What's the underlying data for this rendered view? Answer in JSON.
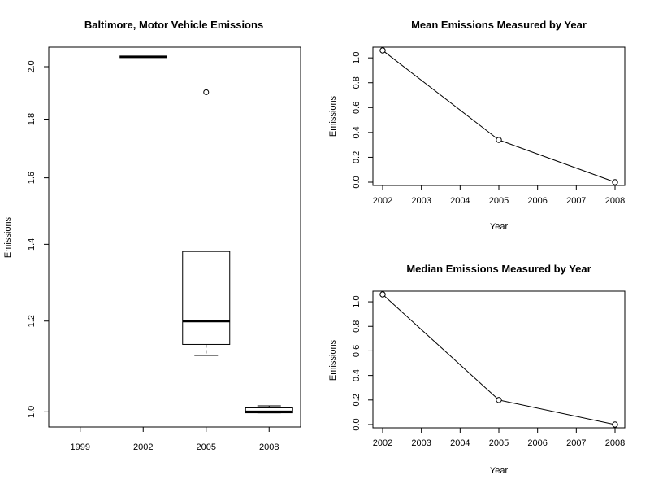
{
  "chart_data": [
    {
      "type": "boxplot",
      "title": "Baltimore, Motor Vehicle Emissions",
      "xlabel": "",
      "ylabel": "Emissions",
      "y_scale": "log",
      "ylim": [
        0.97,
        2.08
      ],
      "y_ticks": [
        1.0,
        1.2,
        1.4,
        1.6,
        1.8,
        2.0
      ],
      "y_tick_labels": [
        "1.0",
        "1.2",
        "1.4",
        "1.6",
        "1.8",
        "2.0"
      ],
      "categories": [
        "1999",
        "2002",
        "2005",
        "2008"
      ],
      "boxes": [
        null,
        {
          "min": 2.04,
          "q1": 2.04,
          "median": 2.04,
          "q3": 2.04,
          "max": 2.04,
          "outliers": []
        },
        {
          "min": 1.12,
          "q1": 1.145,
          "median": 1.2,
          "q3": 1.38,
          "max": 1.38,
          "outliers": [
            1.9
          ]
        },
        {
          "min": 0.998,
          "q1": 0.998,
          "median": 1.0,
          "q3": 1.008,
          "max": 1.012,
          "outliers": []
        }
      ]
    },
    {
      "type": "line",
      "title": "Mean Emissions Measured by Year",
      "xlabel": "Year",
      "ylabel": "Emissions",
      "xlim": [
        2002,
        2008
      ],
      "ylim": [
        0,
        1.06
      ],
      "x_ticks": [
        2002,
        2003,
        2004,
        2005,
        2006,
        2007,
        2008
      ],
      "y_ticks": [
        "0.0",
        "0.2",
        "0.4",
        "0.6",
        "0.8",
        "1.0"
      ],
      "x": [
        2002,
        2005,
        2008
      ],
      "y": [
        1.06,
        0.34,
        0.0
      ]
    },
    {
      "type": "line",
      "title": "Median Emissions Measured by Year",
      "xlabel": "Year",
      "ylabel": "Emissions",
      "xlim": [
        2002,
        2008
      ],
      "ylim": [
        0,
        1.06
      ],
      "x_ticks": [
        2002,
        2003,
        2004,
        2005,
        2006,
        2007,
        2008
      ],
      "y_ticks": [
        "0.0",
        "0.2",
        "0.4",
        "0.6",
        "0.8",
        "1.0"
      ],
      "x": [
        2002,
        2005,
        2008
      ],
      "y": [
        1.06,
        0.2,
        0.0
      ]
    }
  ]
}
